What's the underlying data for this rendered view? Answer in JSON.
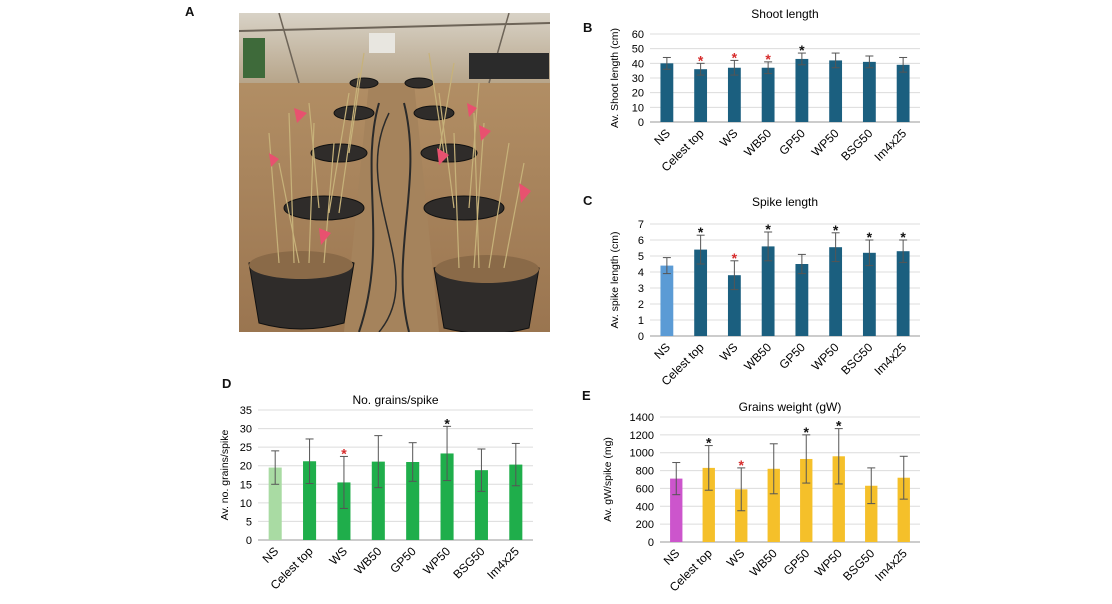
{
  "panels": {
    "photo_letter": "A",
    "letters": [
      "B",
      "C",
      "D",
      "E"
    ]
  },
  "chart_data": [
    {
      "type": "bar",
      "panel": "B",
      "title": "Shoot length",
      "ylabel": "Av. Shoot  length (cm)",
      "categories": [
        "NS",
        "Celest top",
        "WS",
        "WB50",
        "GP50",
        "WP50",
        "BSG50",
        "Im4x25"
      ],
      "values": [
        40,
        36,
        37,
        37,
        43,
        42,
        41,
        39
      ],
      "errors": [
        4,
        4,
        5,
        4,
        4,
        5,
        4,
        5
      ],
      "ylim": [
        0,
        60
      ],
      "yticks": [
        "0",
        "10",
        "20",
        "30",
        "40",
        "50",
        "60"
      ],
      "markers": [
        "",
        "*",
        "*",
        "*",
        "*",
        "",
        "",
        ""
      ],
      "marker_colors": [
        "",
        "#d62c2c",
        "#d62c2c",
        "#d62c2c",
        "#111111",
        "",
        "",
        ""
      ],
      "bar_colors": [
        "#1b5f7f",
        "#1b5f7f",
        "#1b5f7f",
        "#1b5f7f",
        "#1b5f7f",
        "#1b5f7f",
        "#1b5f7f",
        "#1b5f7f"
      ],
      "grid": true,
      "legend": "none"
    },
    {
      "type": "bar",
      "panel": "C",
      "title": "Spike length",
      "ylabel": "Av. spike  length (cm)",
      "categories": [
        "NS",
        "Celest top",
        "WS",
        "WB50",
        "GP50",
        "WP50",
        "BSG50",
        "Im4x25"
      ],
      "values": [
        4.4,
        5.4,
        3.8,
        5.6,
        4.5,
        5.55,
        5.2,
        5.3
      ],
      "errors": [
        0.5,
        0.9,
        0.9,
        0.9,
        0.6,
        0.9,
        0.8,
        0.7
      ],
      "ylim": [
        0,
        7
      ],
      "yticks": [
        "0",
        "1",
        "2",
        "3",
        "4",
        "5",
        "6",
        "7"
      ],
      "markers": [
        "",
        "*",
        "*",
        "*",
        "",
        "*",
        "*",
        "*"
      ],
      "marker_colors": [
        "",
        "#111111",
        "#d62c2c",
        "#111111",
        "",
        "#111111",
        "#111111",
        "#111111"
      ],
      "bar_colors": [
        "#5b9bd5",
        "#1b5f7f",
        "#1b5f7f",
        "#1b5f7f",
        "#1b5f7f",
        "#1b5f7f",
        "#1b5f7f",
        "#1b5f7f"
      ],
      "grid": true,
      "legend": "none"
    },
    {
      "type": "bar",
      "panel": "D",
      "title": "No. grains/spike",
      "ylabel": "Av. no. grains/spike",
      "categories": [
        "NS",
        "Celest top",
        "WS",
        "WB50",
        "GP50",
        "WP50",
        "BSG50",
        "Im4x25"
      ],
      "values": [
        19.5,
        21.2,
        15.5,
        21.1,
        21,
        23.3,
        18.8,
        20.3
      ],
      "errors": [
        4.5,
        6,
        7,
        7,
        5.2,
        7.3,
        5.7,
        5.7
      ],
      "ylim": [
        0,
        35
      ],
      "yticks": [
        "0",
        "5",
        "10",
        "15",
        "20",
        "25",
        "30",
        "35"
      ],
      "markers": [
        "",
        "",
        "*",
        "",
        "",
        "*",
        "",
        ""
      ],
      "marker_colors": [
        "",
        "",
        "#d62c2c",
        "",
        "",
        "#111111",
        "",
        ""
      ],
      "bar_colors": [
        "#a9dba3",
        "#1fae4b",
        "#1fae4b",
        "#1fae4b",
        "#1fae4b",
        "#1fae4b",
        "#1fae4b",
        "#1fae4b"
      ],
      "grid": true,
      "legend": "none"
    },
    {
      "type": "bar",
      "panel": "E",
      "title": "Grains weight (gW)",
      "ylabel": "Av. gW/spike (mg)",
      "categories": [
        "NS",
        "Celest top",
        "WS",
        "WB50",
        "GP50",
        "WP50",
        "BSG50",
        "Im4x25"
      ],
      "values": [
        710,
        830,
        590,
        820,
        930,
        960,
        630,
        720
      ],
      "errors": [
        180,
        250,
        240,
        280,
        270,
        310,
        200,
        240
      ],
      "ylim": [
        0,
        1400
      ],
      "yticks": [
        "0",
        "200",
        "400",
        "600",
        "800",
        "1000",
        "1200",
        "1400"
      ],
      "markers": [
        "",
        "*",
        "*",
        "",
        "*",
        "*",
        "",
        ""
      ],
      "marker_colors": [
        "",
        "#111111",
        "#d62c2c",
        "",
        "#111111",
        "#111111",
        "",
        ""
      ],
      "bar_colors": [
        "#cc55cc",
        "#f5c02a",
        "#f5c02a",
        "#f5c02a",
        "#f5c02a",
        "#f5c02a",
        "#f5c02a",
        "#f5c02a"
      ],
      "grid": true,
      "legend": "none"
    }
  ]
}
